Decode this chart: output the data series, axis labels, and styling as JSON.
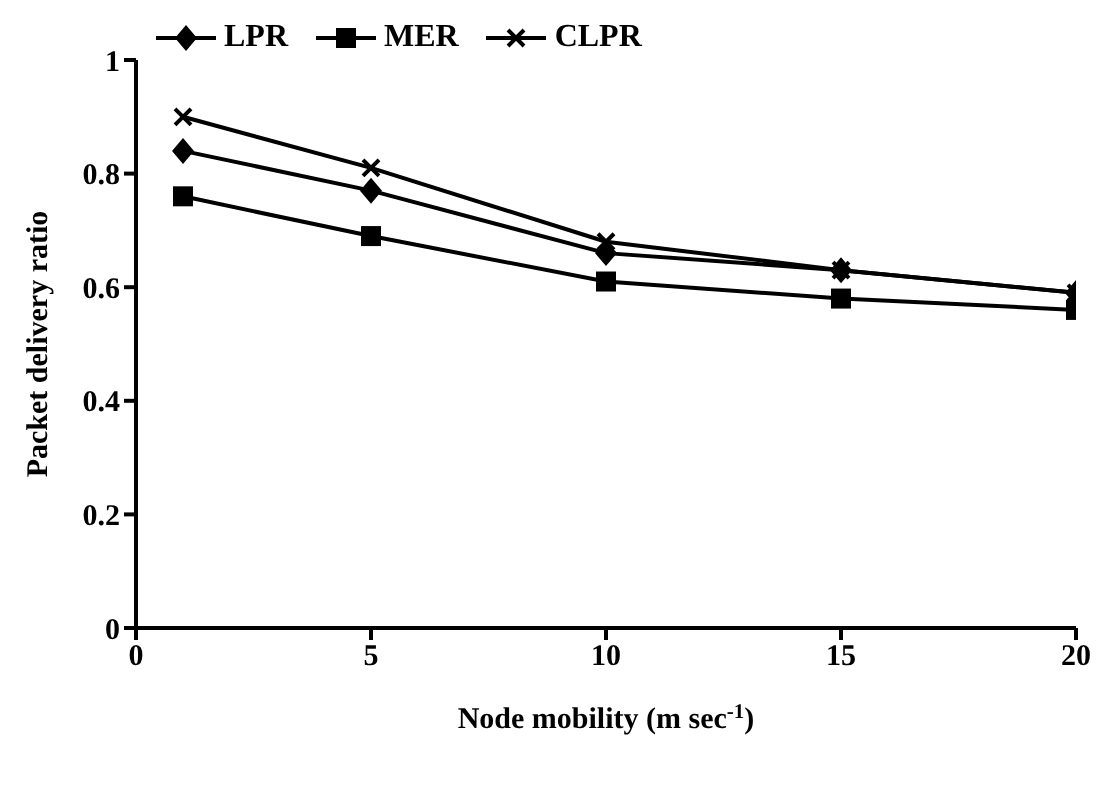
{
  "chart_data": {
    "type": "line",
    "xlabel": "Node mobility (m sec$^{-1}$)",
    "ylabel": "Packet delivery ratio",
    "x": [
      1,
      5,
      10,
      15,
      20
    ],
    "series": [
      {
        "name": "LPR",
        "color": "#000000",
        "marker": "diamond",
        "values": [
          0.84,
          0.77,
          0.66,
          0.63,
          0.59
        ]
      },
      {
        "name": "MER",
        "color": "#000000",
        "marker": "square",
        "values": [
          0.76,
          0.69,
          0.61,
          0.58,
          0.56
        ]
      },
      {
        "name": "CLPR",
        "color": "#000000",
        "marker": "cross",
        "values": [
          0.9,
          0.81,
          0.68,
          0.63,
          0.59
        ]
      }
    ],
    "xlim": [
      0,
      20
    ],
    "xticks": [
      0,
      5,
      10,
      15,
      20
    ],
    "ylim": [
      0,
      1
    ],
    "yticks": [
      0,
      0.2,
      0.4,
      0.6,
      0.8,
      1
    ],
    "grid": false,
    "legend": "top left",
    "line_style": "solid"
  }
}
